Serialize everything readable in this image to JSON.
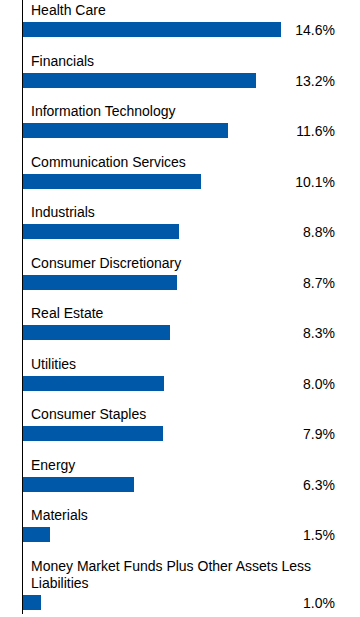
{
  "chart_data": {
    "type": "bar",
    "orientation": "horizontal",
    "categories": [
      "Health Care",
      "Financials",
      "Information Technology",
      "Communication Services",
      "Industrials",
      "Consumer Discretionary",
      "Real Estate",
      "Utilities",
      "Consumer Staples",
      "Energy",
      "Materials",
      "Money Market Funds Plus Other Assets Less Liabilities"
    ],
    "values": [
      14.6,
      13.2,
      11.6,
      10.1,
      8.8,
      8.7,
      8.3,
      8.0,
      7.9,
      6.3,
      1.5,
      1.0
    ],
    "value_labels": [
      "14.6%",
      "13.2%",
      "11.6%",
      "10.1%",
      "8.8%",
      "8.7%",
      "8.3%",
      "8.0%",
      "7.9%",
      "6.3%",
      "1.5%",
      "1.0%"
    ],
    "color": "#0058a8",
    "xlim": [
      0,
      14.6
    ],
    "data_labels": true,
    "tick_labels": false
  }
}
